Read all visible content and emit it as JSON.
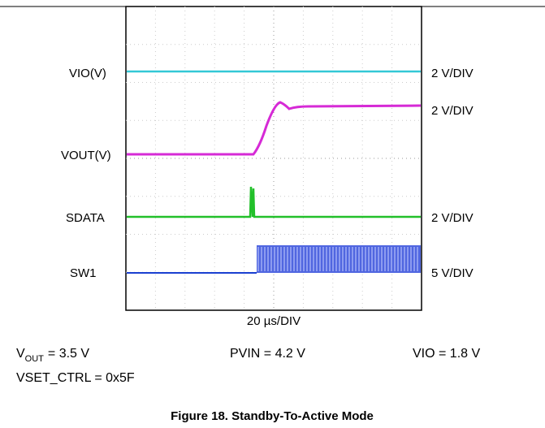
{
  "figure": {
    "trace_labels": [
      "VIO(V)",
      "VOUT(V)",
      "SDATA",
      "SW1"
    ],
    "scale_labels": [
      "2 V/DIV",
      "2 V/DIV",
      "2 V/DIV",
      "5 V/DIV"
    ],
    "time_scale": "20 µs/DIV",
    "conditions": {
      "vout": {
        "symbol": "V",
        "subscript": "OUT",
        "value": "= 3.5 V"
      },
      "pvin": "PVIN = 4.2 V",
      "vio": "VIO = 1.8 V",
      "vset": "VSET_CTRL = 0x5F"
    },
    "caption": "Figure 18. Standby-To-Active Mode"
  }
}
